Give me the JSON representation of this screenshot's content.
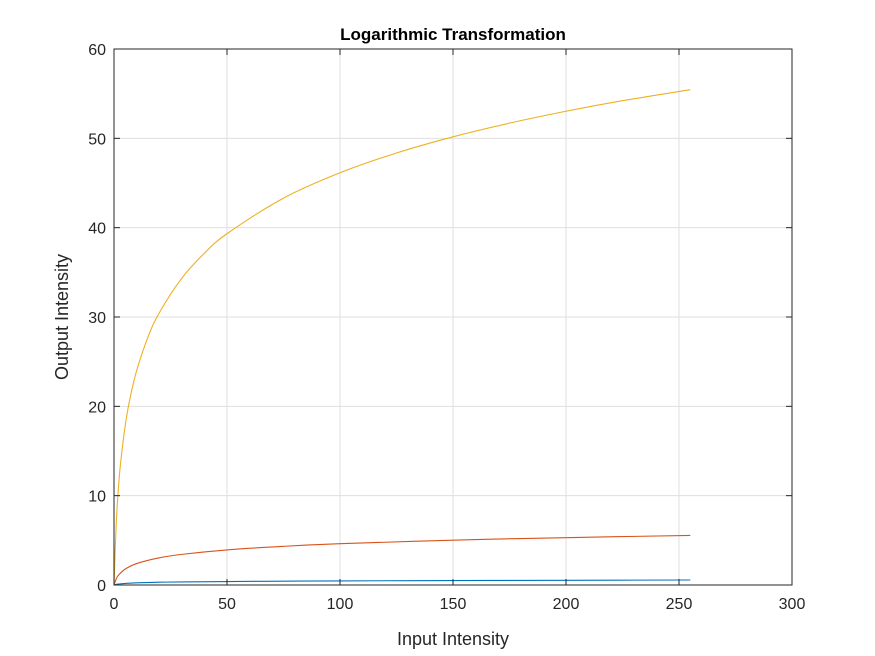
{
  "chart_data": {
    "type": "line",
    "title": "Logarithmic Transformation",
    "xlabel": "Input Intensity",
    "ylabel": "Output Intensity",
    "xlim": [
      0,
      300
    ],
    "ylim": [
      0,
      60
    ],
    "xticks": [
      0,
      50,
      100,
      150,
      200,
      250,
      300
    ],
    "yticks": [
      0,
      10,
      20,
      30,
      40,
      50,
      60
    ],
    "grid": true,
    "legend": "none",
    "series": [
      {
        "color": "#0072BD",
        "x": [
          0,
          1,
          2,
          5,
          10,
          20,
          30,
          50,
          75,
          100,
          150,
          200,
          255
        ],
        "y": [
          0,
          0.07,
          0.11,
          0.18,
          0.24,
          0.31,
          0.34,
          0.39,
          0.43,
          0.46,
          0.5,
          0.53,
          0.56
        ]
      },
      {
        "color": "#D95319",
        "x": [
          0,
          1,
          2,
          5,
          10,
          20,
          30,
          50,
          75,
          100,
          150,
          200,
          255
        ],
        "y": [
          0,
          0.69,
          1.1,
          1.79,
          2.4,
          3.04,
          3.43,
          3.93,
          4.33,
          4.62,
          5.02,
          5.3,
          5.55
        ]
      },
      {
        "color": "#EDB120",
        "x": [
          0,
          1,
          2,
          3,
          5,
          7,
          10,
          15,
          20,
          30,
          40,
          50,
          75,
          100,
          125,
          150,
          175,
          200,
          225,
          255
        ],
        "y": [
          0,
          6.93,
          10.99,
          13.86,
          17.92,
          20.79,
          23.98,
          27.73,
          30.45,
          34.34,
          37.14,
          39.32,
          43.31,
          46.15,
          48.36,
          50.17,
          51.7,
          53.03,
          54.21,
          55.45
        ]
      }
    ]
  }
}
